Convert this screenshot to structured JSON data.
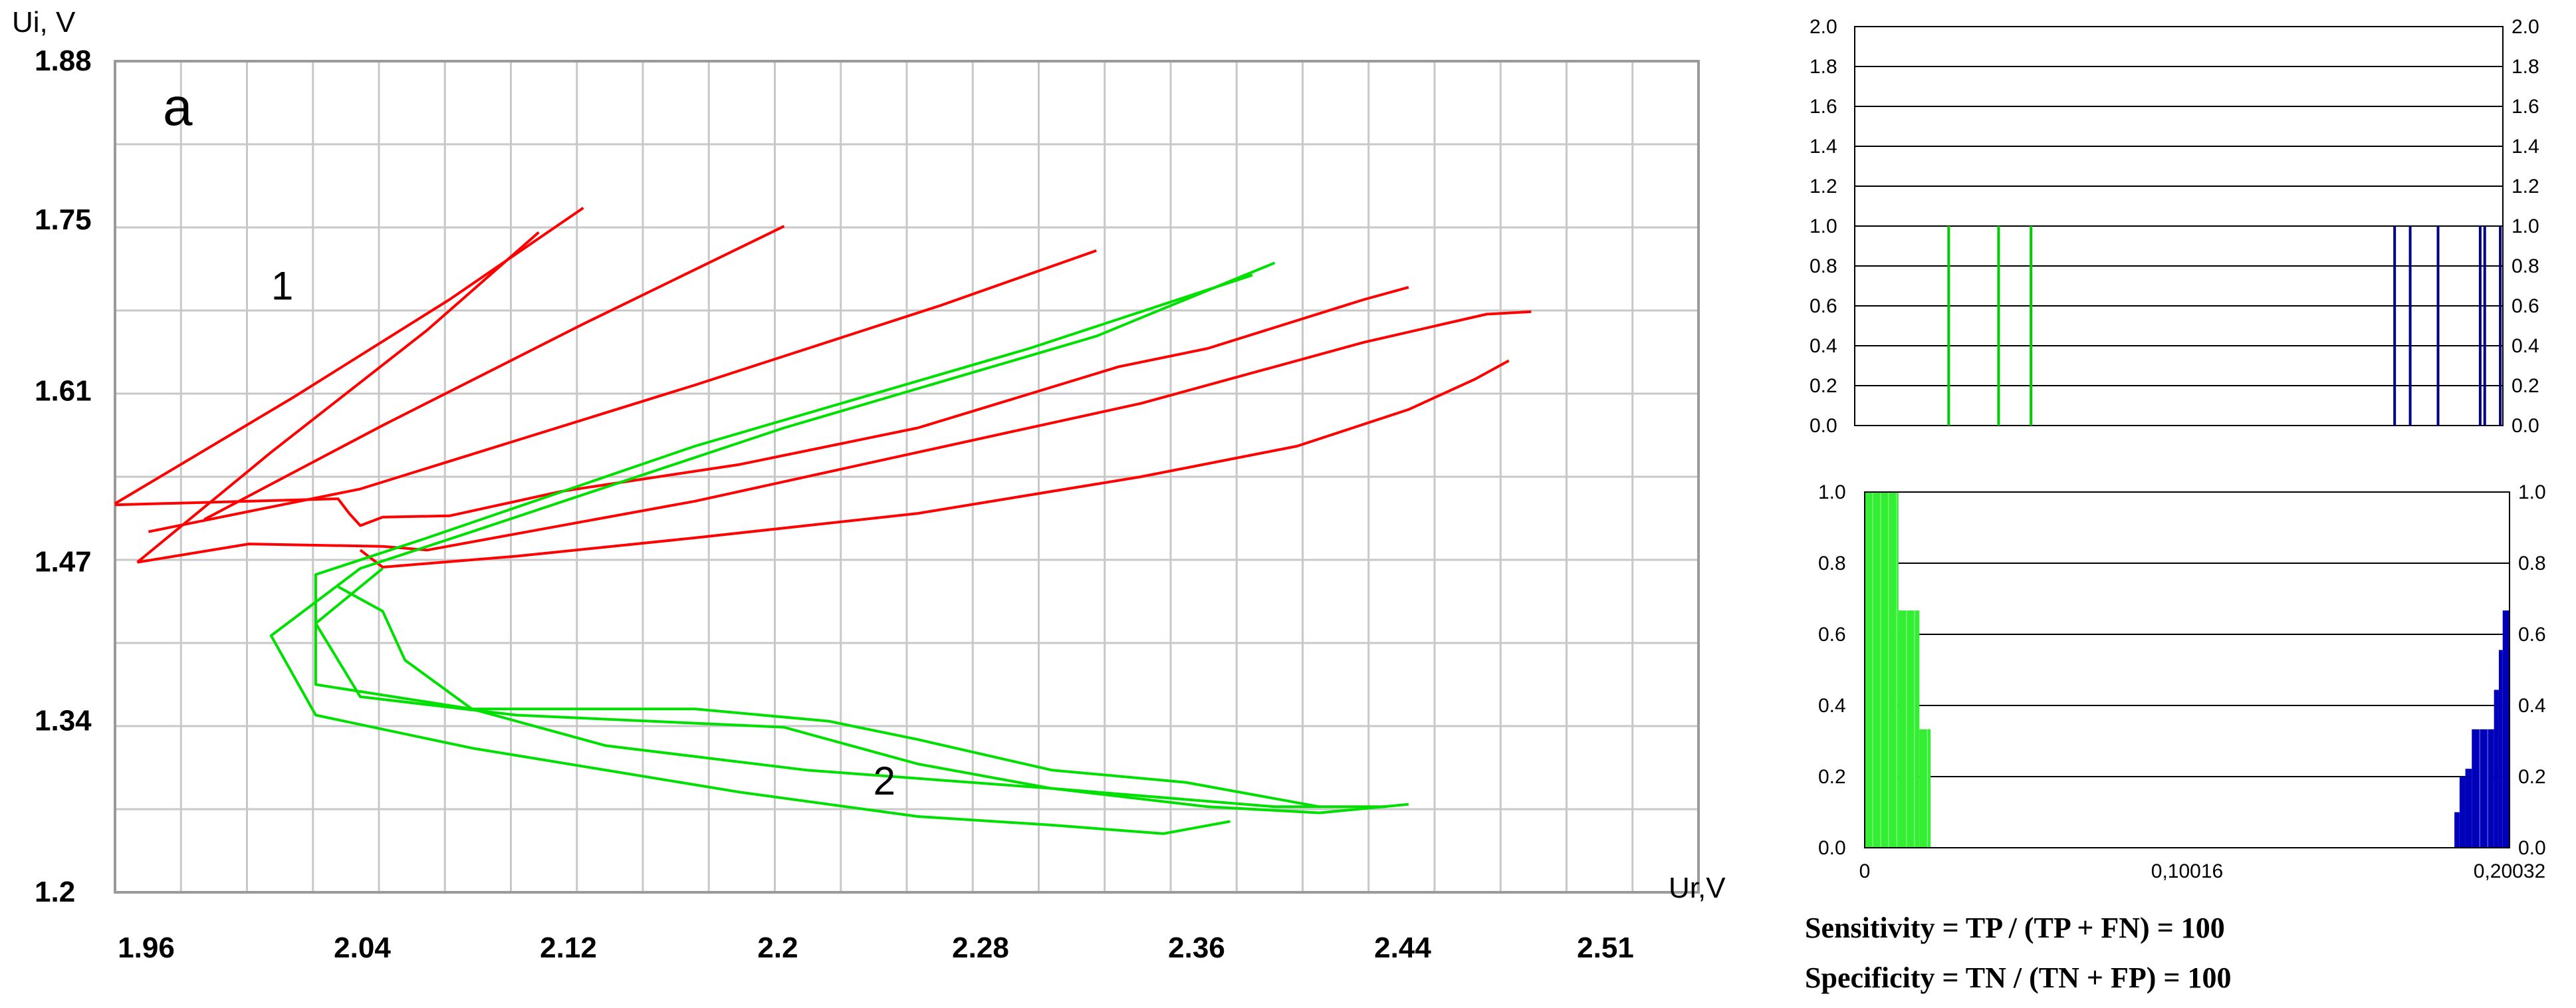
{
  "chart_data": [
    {
      "type": "line",
      "panel_label": "a",
      "xlabel": "Ur,V",
      "ylabel": "Ui, V",
      "x_tick_labels": [
        "1.96",
        "2.04",
        "2.12",
        "2.2",
        "2.28",
        "2.36",
        "2.44",
        "2.51"
      ],
      "y_tick_labels": [
        "1.88",
        "1.75",
        "1.61",
        "1.47",
        "1.34",
        "1.2"
      ],
      "xlim": [
        1.94,
        2.65
      ],
      "ylim": [
        1.2,
        1.88
      ],
      "grid": true,
      "curve_labels": [
        {
          "text": "1",
          "x": 2.01,
          "y": 1.685
        },
        {
          "text": "2",
          "x": 2.28,
          "y": 1.28
        }
      ],
      "series": [
        {
          "color": "#ff0000",
          "points": [
            [
              1.94,
              1.517
            ],
            [
              2.04,
              1.522
            ],
            [
              2.045,
              1.51
            ],
            [
              2.05,
              1.5
            ],
            [
              2.06,
              1.507
            ],
            [
              2.09,
              1.508
            ],
            [
              2.14,
              1.528
            ],
            [
              2.22,
              1.55
            ],
            [
              2.3,
              1.58
            ],
            [
              2.39,
              1.63
            ],
            [
              2.43,
              1.645
            ],
            [
              2.5,
              1.685
            ],
            [
              2.52,
              1.695
            ]
          ]
        },
        {
          "color": "#ff0000",
          "points": [
            [
              1.95,
              1.47
            ],
            [
              2.0,
              1.485
            ],
            [
              2.06,
              1.483
            ],
            [
              2.08,
              1.48
            ],
            [
              2.2,
              1.52
            ],
            [
              2.3,
              1.56
            ],
            [
              2.4,
              1.6
            ],
            [
              2.5,
              1.65
            ],
            [
              2.555,
              1.673
            ],
            [
              2.575,
              1.675
            ]
          ]
        },
        {
          "color": "#ff0000",
          "points": [
            [
              2.05,
              1.48
            ],
            [
              2.06,
              1.466
            ],
            [
              2.12,
              1.475
            ],
            [
              2.2,
              1.49
            ],
            [
              2.3,
              1.51
            ],
            [
              2.4,
              1.54
            ],
            [
              2.47,
              1.565
            ],
            [
              2.52,
              1.595
            ],
            [
              2.55,
              1.62
            ],
            [
              2.565,
              1.635
            ]
          ]
        },
        {
          "color": "#ff0000",
          "points": [
            [
              1.94,
              1.518
            ],
            [
              2.02,
              1.605
            ],
            [
              2.09,
              1.685
            ],
            [
              2.15,
              1.76
            ]
          ]
        },
        {
          "color": "#ff0000",
          "points": [
            [
              1.95,
              1.47
            ],
            [
              2.01,
              1.56
            ],
            [
              2.08,
              1.66
            ],
            [
              2.13,
              1.74
            ]
          ]
        },
        {
          "color": "#ff0000",
          "points": [
            [
              1.98,
              1.505
            ],
            [
              2.06,
              1.582
            ],
            [
              2.15,
              1.665
            ],
            [
              2.24,
              1.745
            ]
          ]
        },
        {
          "color": "#ff0000",
          "points": [
            [
              1.955,
              1.495
            ],
            [
              2.05,
              1.53
            ],
            [
              2.2,
              1.615
            ],
            [
              2.31,
              1.68
            ],
            [
              2.38,
              1.725
            ]
          ]
        },
        {
          "color": "#00e000",
          "points": [
            [
              2.46,
              1.715
            ],
            [
              2.38,
              1.655
            ],
            [
              2.24,
              1.58
            ],
            [
              2.1,
              1.495
            ],
            [
              2.05,
              1.465
            ],
            [
              2.01,
              1.41
            ],
            [
              2.03,
              1.345
            ],
            [
              2.1,
              1.318
            ],
            [
              2.22,
              1.282
            ],
            [
              2.3,
              1.262
            ],
            [
              2.36,
              1.255
            ],
            [
              2.41,
              1.248
            ],
            [
              2.44,
              1.258
            ]
          ]
        },
        {
          "color": "#00e000",
          "points": [
            [
              2.45,
              1.705
            ],
            [
              2.35,
              1.645
            ],
            [
              2.2,
              1.565
            ],
            [
              2.08,
              1.49
            ],
            [
              2.03,
              1.46
            ],
            [
              2.03,
              1.42
            ],
            [
              2.05,
              1.36
            ],
            [
              2.12,
              1.345
            ],
            [
              2.18,
              1.34
            ],
            [
              2.24,
              1.335
            ],
            [
              2.3,
              1.305
            ],
            [
              2.36,
              1.285
            ],
            [
              2.43,
              1.27
            ],
            [
              2.48,
              1.265
            ],
            [
              2.52,
              1.272
            ]
          ]
        },
        {
          "color": "#00e000",
          "points": [
            [
              2.04,
              1.45
            ],
            [
              2.06,
              1.43
            ],
            [
              2.07,
              1.39
            ],
            [
              2.1,
              1.35
            ],
            [
              2.16,
              1.32
            ],
            [
              2.25,
              1.3
            ],
            [
              2.36,
              1.285
            ],
            [
              2.46,
              1.27
            ],
            [
              2.51,
              1.27
            ]
          ]
        },
        {
          "color": "#00e000",
          "points": [
            [
              2.06,
              1.465
            ],
            [
              2.03,
              1.42
            ],
            [
              2.03,
              1.37
            ],
            [
              2.1,
              1.35
            ],
            [
              2.2,
              1.35
            ],
            [
              2.26,
              1.34
            ],
            [
              2.3,
              1.325
            ],
            [
              2.36,
              1.3
            ],
            [
              2.42,
              1.29
            ],
            [
              2.48,
              1.27
            ]
          ]
        }
      ]
    },
    {
      "type": "bar",
      "y_tick_labels": [
        "2.0",
        "1.8",
        "1.6",
        "1.4",
        "1.2",
        "1.0",
        "0.8",
        "0.6",
        "0.4",
        "0.2",
        "0.0"
      ],
      "ylim": [
        0,
        2.0
      ],
      "grid": true,
      "series": [
        {
          "color": "#00cc00",
          "x_fraction": [
            0.145,
            0.222,
            0.272
          ],
          "values": [
            1.0,
            1.0,
            1.0
          ]
        },
        {
          "color": "#000080",
          "x_fraction": [
            0.833,
            0.857,
            0.9,
            0.965,
            0.972,
            0.996
          ],
          "values": [
            1.0,
            1.0,
            1.0,
            1.0,
            1.0,
            1.0
          ]
        }
      ]
    },
    {
      "type": "bar",
      "y_tick_labels": [
        "1.0",
        "0.8",
        "0.6",
        "0.4",
        "0.2",
        "0.0"
      ],
      "x_tick_labels": [
        "0",
        "0,10016",
        "0,20032"
      ],
      "xlim": [
        0,
        0.20032
      ],
      "ylim": [
        0,
        1.0
      ],
      "grid": true,
      "series": [
        {
          "color": "#33ee33",
          "x": [
            0.0,
            0.0105,
            0.017,
            0.0205
          ],
          "values": [
            1.0,
            0.667,
            0.333,
            0.0
          ]
        },
        {
          "color": "#0000bb",
          "x": [
            0.1832,
            0.1848,
            0.1866,
            0.1886,
            0.1955,
            0.197,
            0.1982,
            0.2003
          ],
          "values": [
            0.1,
            0.2,
            0.222,
            0.333,
            0.444,
            0.556,
            0.667,
            0.889
          ]
        }
      ]
    }
  ],
  "formulas": {
    "sensitivity": "Sensitivity = TP / (TP + FN) = 100",
    "specificity": "Specificity = TN / (TN + FP) = 100"
  }
}
